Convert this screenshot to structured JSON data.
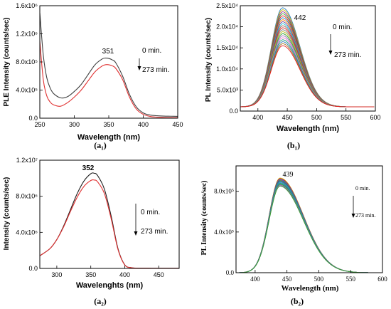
{
  "chart_data": [
    {
      "id": "a1",
      "type": "line",
      "panel_label": "(a₁)",
      "xlabel": "Wavelength (nm)",
      "ylabel": "PLE Intensity (counts/sec)",
      "xlim": [
        250,
        450
      ],
      "ylim": [
        0,
        1600000
      ],
      "x_ticks": [
        250,
        300,
        350,
        400,
        450
      ],
      "x_tick_labels": [
        "250",
        "300",
        "350",
        "400",
        "450"
      ],
      "y_ticks": [
        0,
        400000,
        800000,
        1200000,
        1600000
      ],
      "y_tick_labels": [
        "0.0",
        "4.0x10⁵",
        "8.0x10⁵",
        "1.2x10⁶",
        "1.6x10⁶"
      ],
      "annotations": {
        "peak": "351",
        "start": "0 min.",
        "end": "273 min."
      },
      "series": [
        {
          "color": "#404040",
          "x": [
            250,
            255,
            260,
            265,
            270,
            280,
            290,
            300,
            310,
            320,
            330,
            340,
            345,
            350,
            355,
            360,
            370,
            380,
            390,
            400,
            410,
            420,
            430,
            440,
            450
          ],
          "values": [
            1500000,
            900000,
            580000,
            430000,
            350000,
            290000,
            305000,
            380000,
            480000,
            620000,
            760000,
            840000,
            855000,
            850000,
            830000,
            790000,
            600000,
            340000,
            160000,
            75000,
            45000,
            35000,
            30000,
            28000,
            26000
          ]
        },
        {
          "color": "#e03030",
          "x": [
            250,
            255,
            260,
            265,
            270,
            280,
            290,
            300,
            310,
            320,
            330,
            340,
            345,
            350,
            355,
            360,
            370,
            380,
            390,
            400,
            410,
            420,
            430,
            440,
            450
          ],
          "values": [
            1100000,
            550000,
            320000,
            230000,
            190000,
            170000,
            220000,
            300000,
            400000,
            530000,
            660000,
            740000,
            760000,
            760000,
            745000,
            710000,
            550000,
            300000,
            130000,
            55000,
            25000,
            15000,
            10000,
            8000,
            7000
          ]
        }
      ]
    },
    {
      "id": "b1",
      "type": "line",
      "panel_label": "(b₁)",
      "xlabel": "Wavelength (nm)",
      "ylabel": "PL Intensity (counts/sec)",
      "xlim": [
        370,
        600
      ],
      "ylim": [
        0,
        25000
      ],
      "x_ticks": [
        400,
        450,
        500,
        550,
        600
      ],
      "x_tick_labels": [
        "400",
        "450",
        "500",
        "550",
        "600"
      ],
      "y_ticks": [
        0,
        5000,
        10000,
        15000,
        20000,
        25000
      ],
      "y_tick_labels": [
        "0.0",
        "5.0x10³",
        "1.0x10⁴",
        "1.5x10⁴",
        "2.0x10⁴",
        "2.5x10⁴"
      ],
      "annotations": {
        "peak": "442",
        "start": "0 min.",
        "end": "273 min."
      },
      "curve_model": {
        "peak_x": 442,
        "width_left": 27,
        "width_right": 42,
        "baseline": 1000,
        "peak_max": 24500,
        "peak_min": 15500,
        "count": 20
      },
      "series_colors": [
        "#2a7fbf",
        "#c8b400",
        "#9a2f9a",
        "#33a02c",
        "#e31a1c",
        "#1f78b4",
        "#ff7f00",
        "#6a3d9a",
        "#17becf",
        "#8c564b",
        "#d62728",
        "#7f7f7f",
        "#bcbd22",
        "#2ca02c",
        "#9467bd",
        "#e377c2",
        "#1b9e77",
        "#377eb8",
        "#a6761d",
        "#e41a1c"
      ]
    },
    {
      "id": "a2",
      "type": "line",
      "panel_label": "(a₂)",
      "xlabel": "Wavelenghts (nm)",
      "ylabel": "Intensity (counts/sec)",
      "xlim": [
        275,
        480
      ],
      "ylim": [
        0,
        12000000
      ],
      "x_ticks": [
        300,
        350,
        400,
        450
      ],
      "x_tick_labels": [
        "300",
        "350",
        "400",
        "450"
      ],
      "y_ticks": [
        0,
        4000000,
        8000000,
        12000000
      ],
      "y_tick_labels": [
        "0.0",
        "4.0x10⁶",
        "8.0x10⁶",
        "1.2x10⁷"
      ],
      "annotations": {
        "peak": "352",
        "start": "0 min.",
        "end": "273 min."
      },
      "series": [
        {
          "color": "#202020",
          "x": [
            275,
            290,
            300,
            310,
            320,
            330,
            340,
            350,
            355,
            360,
            370,
            380,
            390,
            400,
            410,
            420,
            440,
            460,
            480
          ],
          "values": [
            1400000,
            2200000,
            3200000,
            4700000,
            6500000,
            8300000,
            9700000,
            10500000,
            10550000,
            10300000,
            8800000,
            5800000,
            2200000,
            400000,
            80000,
            30000,
            20000,
            15000,
            12000
          ]
        },
        {
          "color": "#e03030",
          "x": [
            275,
            290,
            300,
            310,
            320,
            330,
            340,
            350,
            355,
            360,
            370,
            380,
            390,
            400,
            410,
            420,
            440,
            460,
            480
          ],
          "values": [
            1400000,
            2200000,
            3200000,
            4600000,
            6300000,
            7900000,
            9100000,
            9750000,
            9800000,
            9600000,
            8300000,
            5500000,
            2100000,
            380000,
            75000,
            30000,
            20000,
            15000,
            12000
          ]
        }
      ]
    },
    {
      "id": "b2",
      "type": "line",
      "panel_label": "(b₂)",
      "xlabel": "Wavelength (nm)",
      "ylabel": "PL Intensity (counts/sec)",
      "xlim": [
        370,
        600
      ],
      "ylim": [
        0,
        1050000
      ],
      "x_ticks": [
        400,
        450,
        500,
        550,
        600
      ],
      "x_tick_labels": [
        "400",
        "450",
        "500",
        "550",
        "600"
      ],
      "y_ticks": [
        0,
        400000,
        800000
      ],
      "y_tick_labels": [
        "0.0",
        "4.0x10⁵",
        "8.0x10⁵"
      ],
      "annotations": {
        "peak": "439",
        "start": "0 min.",
        "end": "273 min."
      },
      "curve_model": {
        "peak_x": 439,
        "width_left": 24,
        "width_right": 52,
        "baseline": 0,
        "peak_max": 930000,
        "peak_min": 850000,
        "count": 14
      },
      "series_colors": [
        "#c8b400",
        "#e31a1c",
        "#2a7fbf",
        "#9a2f9a",
        "#33a02c",
        "#1f78b4",
        "#6a3d9a",
        "#17becf",
        "#1b9e77",
        "#377eb8",
        "#2ca02c",
        "#7f7f7f",
        "#9467bd",
        "#33a02c"
      ]
    }
  ]
}
